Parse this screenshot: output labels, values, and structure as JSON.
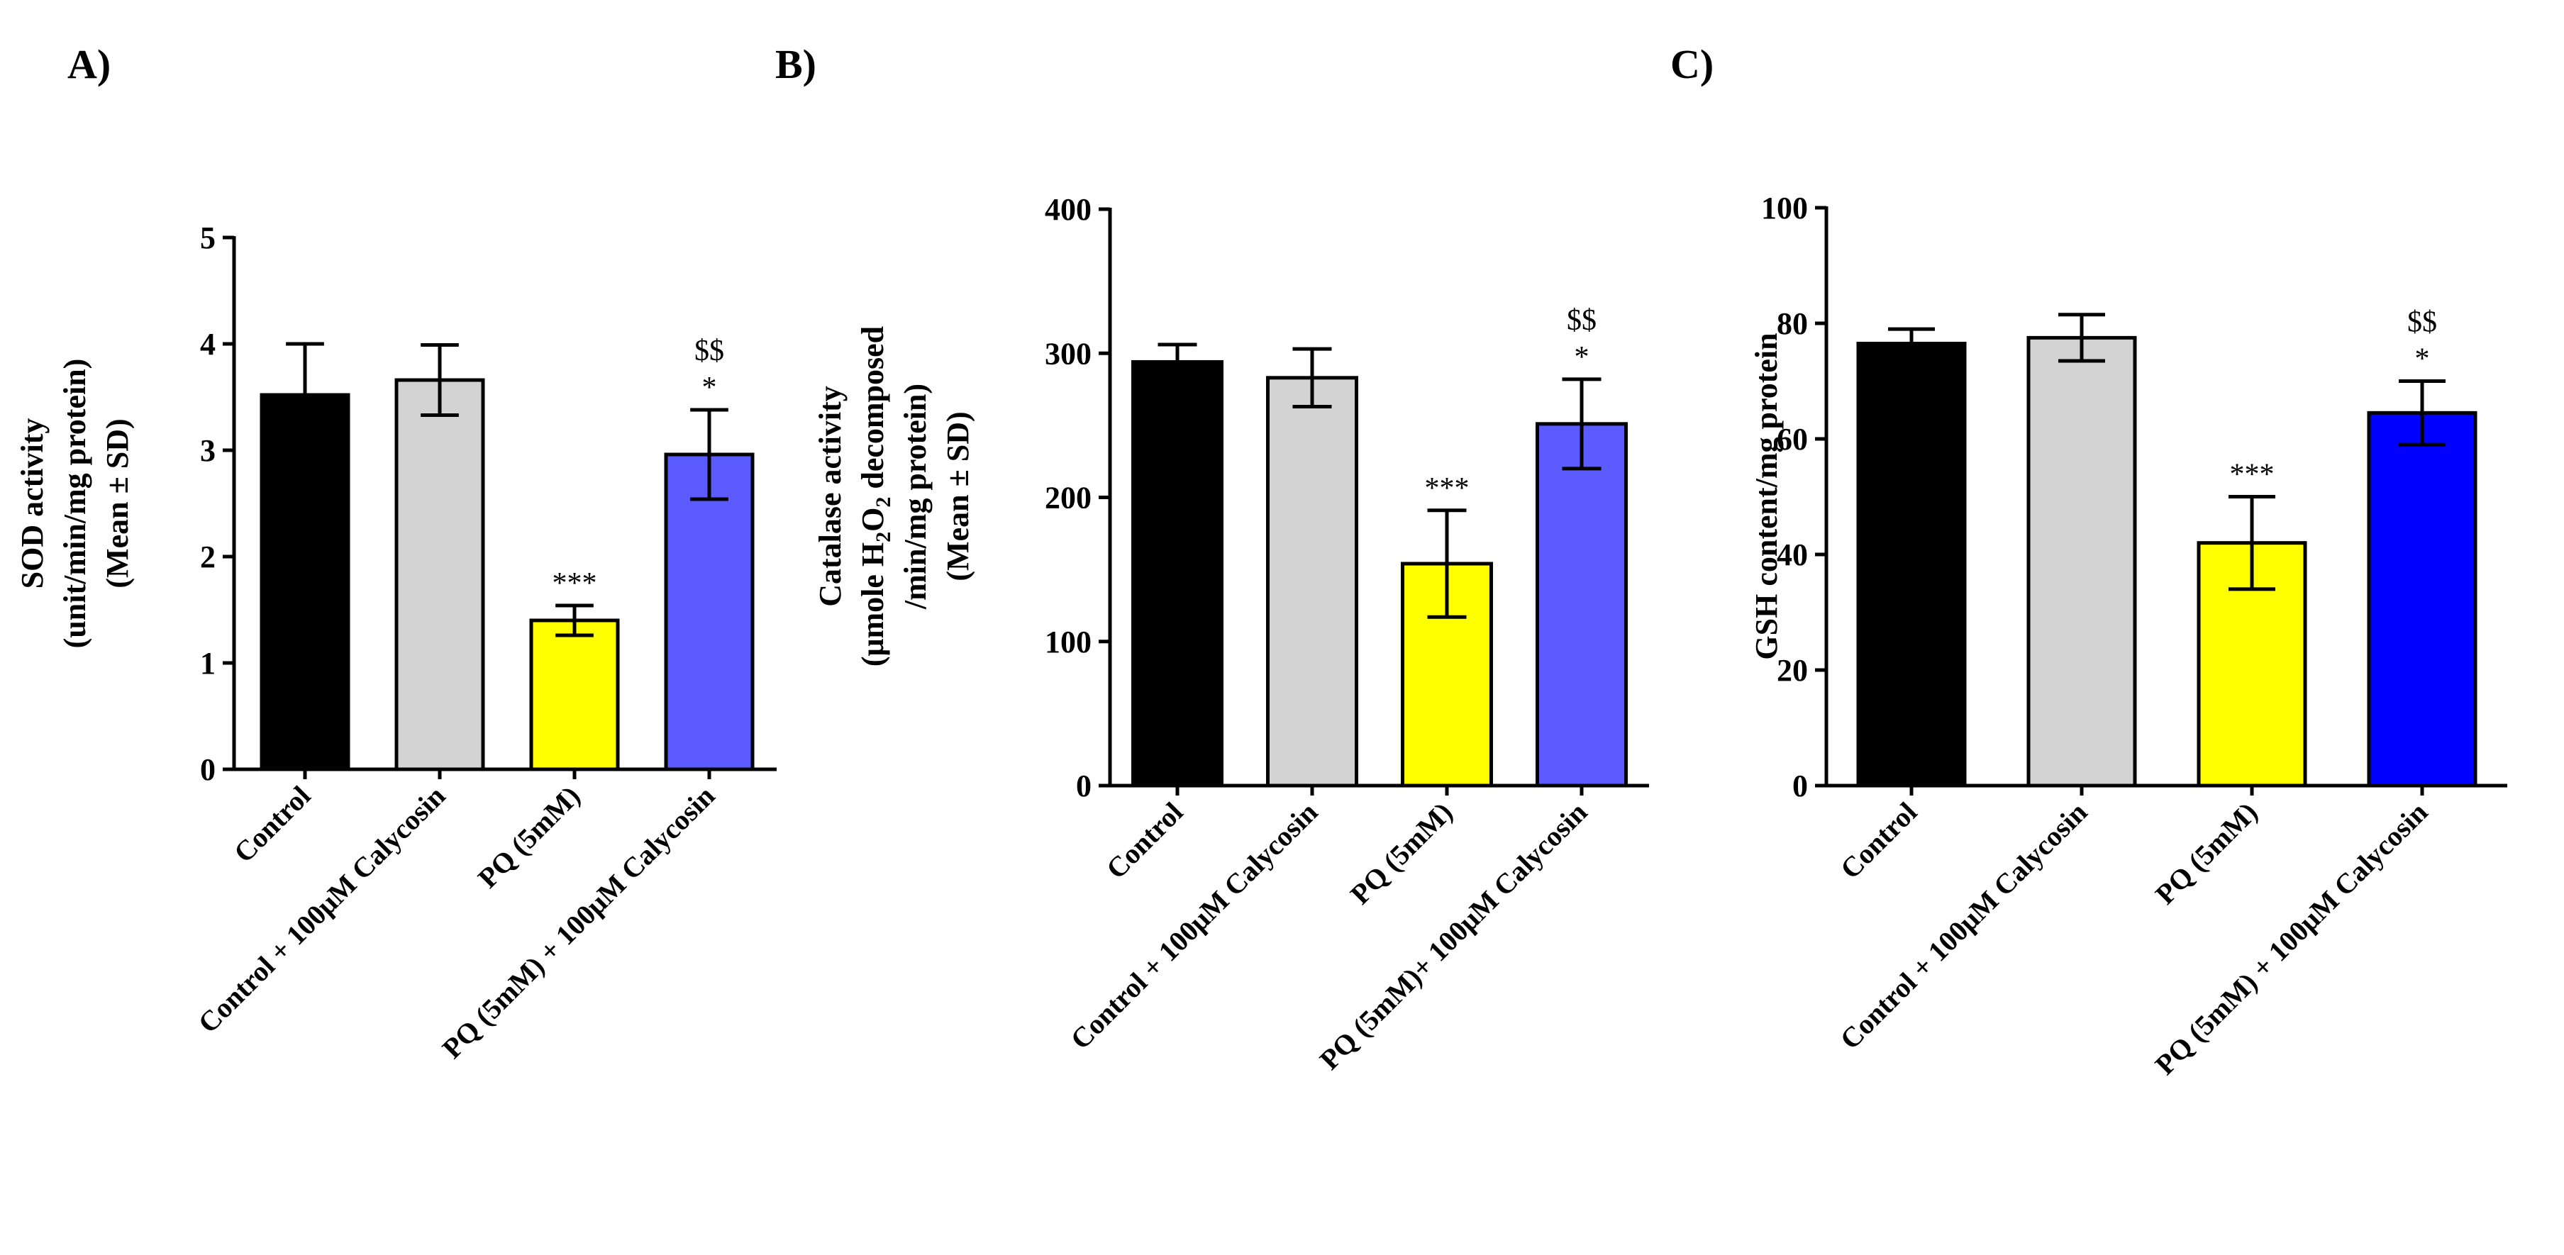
{
  "chart_data": [
    {
      "type": "bar",
      "panel_label": "A)",
      "title": "",
      "ylabel_lines": [
        "SOD activity",
        "(unit/min/mg protein)",
        "(Mean ± SD)"
      ],
      "xlabel": "",
      "ylim": [
        0,
        5
      ],
      "yticks": [
        "0",
        "1",
        "2",
        "3",
        "4",
        "5"
      ],
      "categories": [
        "Control",
        "Control + 100μM Calycosin",
        "PQ (5mM)",
        "PQ (5mM) + 100μM Calycosin"
      ],
      "values": [
        3.52,
        3.66,
        1.4,
        2.96
      ],
      "errors": [
        0.48,
        0.33,
        0.14,
        0.42
      ],
      "colors": [
        "#000000",
        "#d3d3d3",
        "#ffff00",
        "#5b5bff"
      ],
      "significance": [
        [],
        [],
        [
          "***"
        ],
        [
          "$$",
          "*"
        ]
      ]
    },
    {
      "type": "bar",
      "panel_label": "B)",
      "title": "",
      "ylabel_lines": [
        "Catalase activity",
        "(μmole H2O2 decomposed",
        "/min/mg protein)",
        "(Mean ± SD)"
      ],
      "xlabel": "",
      "ylim": [
        0,
        400
      ],
      "yticks": [
        "0",
        "100",
        "200",
        "300",
        "400"
      ],
      "categories": [
        "Control",
        "Control + 100μM Calycosin",
        "PQ (5mM)",
        "PQ (5mM)+ 100μM Calycosin"
      ],
      "values": [
        294,
        283,
        154,
        251
      ],
      "errors": [
        12,
        20,
        37,
        31
      ],
      "colors": [
        "#000000",
        "#d3d3d3",
        "#ffff00",
        "#5b5bff"
      ],
      "significance": [
        [],
        [],
        [
          "***"
        ],
        [
          "$$",
          "*"
        ]
      ]
    },
    {
      "type": "bar",
      "panel_label": "C)",
      "title": "",
      "ylabel_lines": [
        "GSH content/mg protein"
      ],
      "xlabel": "",
      "ylim": [
        0,
        100
      ],
      "yticks": [
        "0",
        "20",
        "40",
        "60",
        "80",
        "100"
      ],
      "categories": [
        "Control",
        "Control + 100μM Calycosin",
        "PQ (5mM)",
        "PQ (5mM) + 100μM Calycosin"
      ],
      "values": [
        76.5,
        77.5,
        42,
        64.5
      ],
      "errors": [
        2.5,
        4,
        8,
        5.5
      ],
      "colors": [
        "#000000",
        "#d3d3d3",
        "#ffff00",
        "#0000ff"
      ],
      "significance": [
        [],
        [],
        [
          "***"
        ],
        [
          "$$",
          "*"
        ]
      ]
    }
  ]
}
